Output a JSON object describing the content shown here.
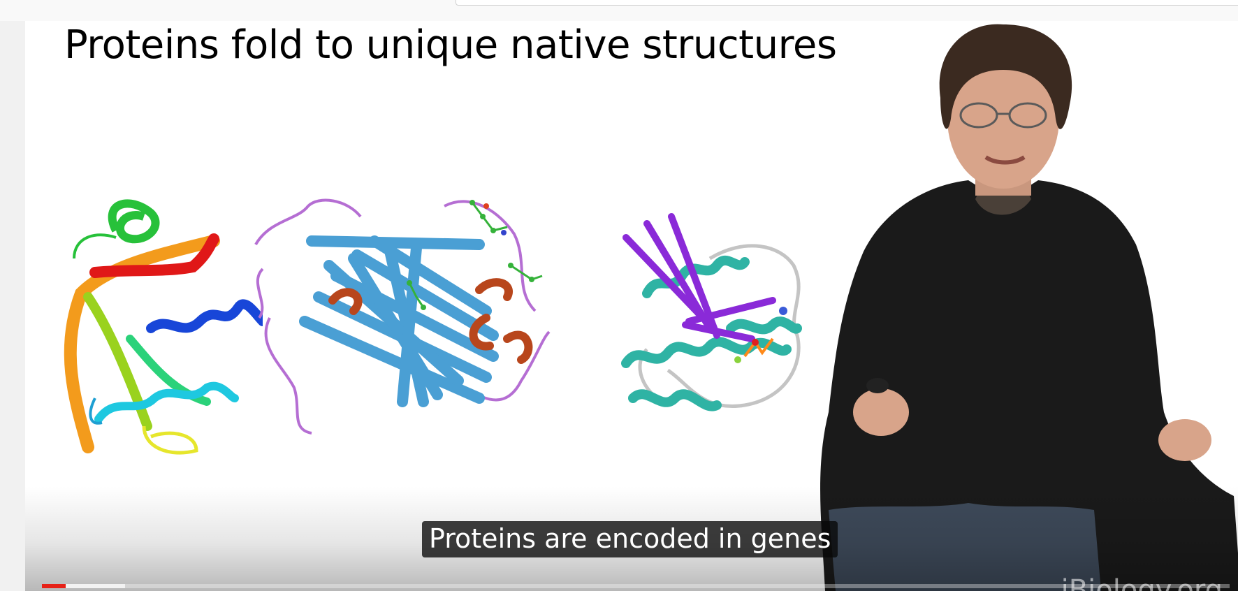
{
  "video": {
    "slide_title": "Proteins fold to unique native structures",
    "caption": "Proteins are encoded in genes",
    "watermark": "iBiology.org",
    "progress_fraction": 0.02,
    "buffered_fraction": 0.07
  },
  "colors": {
    "progress_played": "#e62117"
  }
}
